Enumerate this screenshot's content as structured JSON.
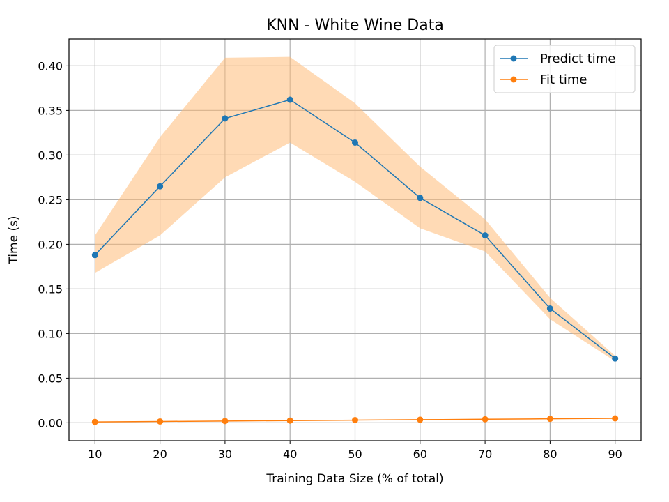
{
  "chart_data": {
    "type": "line",
    "title": "KNN - White Wine Data",
    "xlabel": "Training Data Size (% of total)",
    "ylabel": "Time (s)",
    "x": [
      10,
      20,
      30,
      40,
      50,
      60,
      70,
      80,
      90
    ],
    "xlim": [
      6,
      94
    ],
    "ylim": [
      -0.02,
      0.43
    ],
    "xticks": [
      10,
      20,
      30,
      40,
      50,
      60,
      70,
      80,
      90
    ],
    "yticks": [
      0.0,
      0.05,
      0.1,
      0.15,
      0.2,
      0.25,
      0.3,
      0.35,
      0.4
    ],
    "ytick_labels": [
      "0.00",
      "0.05",
      "0.10",
      "0.15",
      "0.20",
      "0.25",
      "0.30",
      "0.35",
      "0.40"
    ],
    "grid": true,
    "legend_position": "top-right",
    "series": [
      {
        "name": "Predict time",
        "color": "#1f77b4",
        "values": [
          0.188,
          0.265,
          0.341,
          0.362,
          0.314,
          0.252,
          0.21,
          0.128,
          0.072
        ],
        "band": {
          "color": "#ffbb78",
          "opacity": 0.55,
          "lower": [
            0.168,
            0.21,
            0.275,
            0.314,
            0.27,
            0.218,
            0.192,
            0.116,
            0.069
          ],
          "upper": [
            0.21,
            0.32,
            0.409,
            0.41,
            0.358,
            0.287,
            0.228,
            0.14,
            0.075
          ]
        }
      },
      {
        "name": "Fit time",
        "color": "#ff7f0e",
        "values": [
          0.001,
          0.0015,
          0.002,
          0.0025,
          0.003,
          0.0035,
          0.004,
          0.0045,
          0.005
        ]
      }
    ]
  }
}
